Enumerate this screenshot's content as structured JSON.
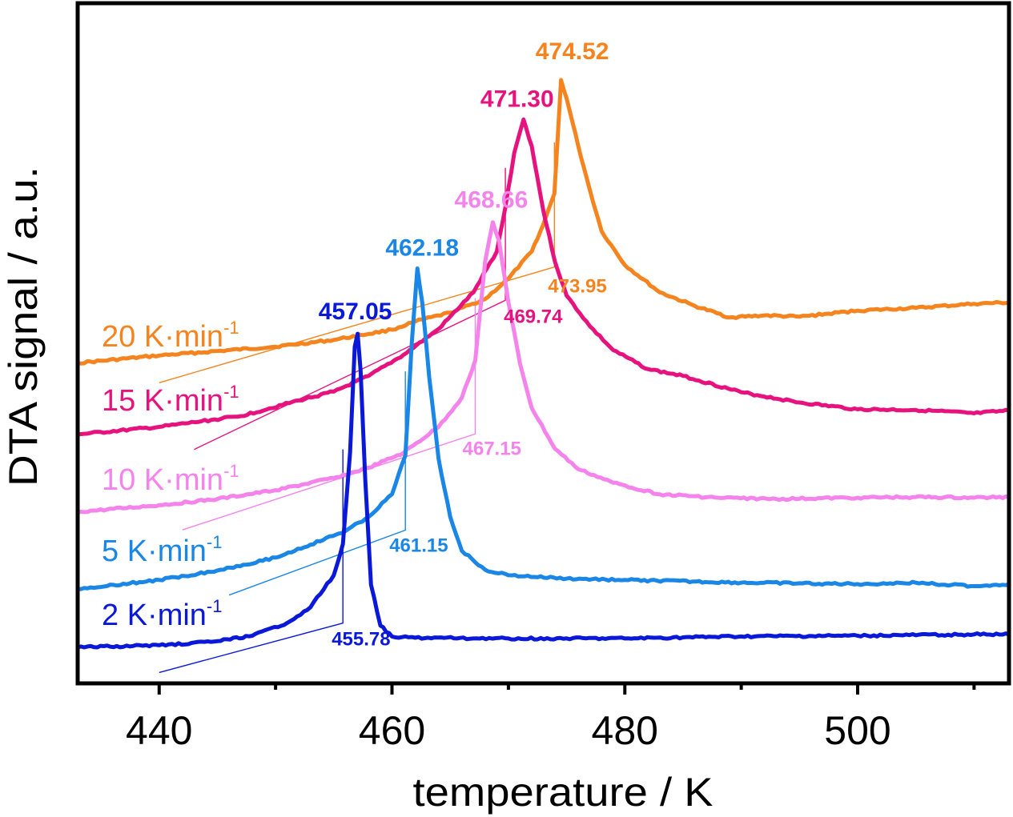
{
  "chart_data": {
    "type": "line",
    "title": "",
    "xlabel": "temperature / K",
    "ylabel": "DTA signal / a.u.",
    "xlim": [
      433,
      513
    ],
    "ylim": [
      0,
      100
    ],
    "x_ticks": [
      440,
      460,
      480,
      500
    ],
    "x_minor_ticks": [
      450,
      470,
      490,
      510
    ],
    "y_ticks": [],
    "grid": false,
    "legend": "none",
    "series": [
      {
        "rate_text": "20 K·min",
        "rate_exp": "-1",
        "color": "#F5841F",
        "peak_label": "474.52",
        "onset_label": "473.95",
        "points": [
          [
            433,
            47.1
          ],
          [
            440,
            48.2
          ],
          [
            450,
            49.5
          ],
          [
            455,
            50.5
          ],
          [
            460,
            52.0
          ],
          [
            462,
            53.2
          ],
          [
            465,
            54.5
          ],
          [
            468,
            56.5
          ],
          [
            470,
            59.5
          ],
          [
            472,
            63.5
          ],
          [
            473,
            67.5
          ],
          [
            473.95,
            72.0
          ],
          [
            474.52,
            88.7
          ],
          [
            475.0,
            86.0
          ],
          [
            476,
            79.0
          ],
          [
            477,
            72.5
          ],
          [
            478,
            66.5
          ],
          [
            480,
            61.5
          ],
          [
            483,
            57.5
          ],
          [
            486,
            55.5
          ],
          [
            489,
            53.8
          ],
          [
            492,
            54.1
          ],
          [
            495,
            53.9
          ],
          [
            500,
            54.8
          ],
          [
            505,
            55.2
          ],
          [
            510,
            55.8
          ],
          [
            513,
            56.0
          ]
        ]
      },
      {
        "rate_text": "15 K·min",
        "rate_exp": "-1",
        "color": "#E6137F",
        "peak_label": "471.30",
        "onset_label": "469.74",
        "points": [
          [
            433,
            36.6
          ],
          [
            440,
            37.7
          ],
          [
            447,
            39.3
          ],
          [
            452,
            41.6
          ],
          [
            455,
            42.9
          ],
          [
            458,
            45.2
          ],
          [
            461,
            48.3
          ],
          [
            464,
            52.1
          ],
          [
            467,
            57.5
          ],
          [
            469,
            63.5
          ],
          [
            469.74,
            70.0
          ],
          [
            470.5,
            78.0
          ],
          [
            471.3,
            82.9
          ],
          [
            472.0,
            79.0
          ],
          [
            473,
            69.5
          ],
          [
            474,
            62.0
          ],
          [
            475,
            57.0
          ],
          [
            477,
            52.5
          ],
          [
            479,
            49.0
          ],
          [
            482,
            46.2
          ],
          [
            485,
            45.2
          ],
          [
            490,
            42.8
          ],
          [
            495,
            41.3
          ],
          [
            500,
            40.3
          ],
          [
            505,
            40.2
          ],
          [
            510,
            39.7
          ],
          [
            513,
            40.1
          ]
        ]
      },
      {
        "rate_text": "10 K·min",
        "rate_exp": "-1",
        "color": "#F484EC",
        "peak_label": "468.66",
        "onset_label": "467.15",
        "points": [
          [
            433,
            25.2
          ],
          [
            440,
            26.2
          ],
          [
            445,
            27.1
          ],
          [
            450,
            28.4
          ],
          [
            455,
            30.2
          ],
          [
            458,
            31.7
          ],
          [
            461,
            33.9
          ],
          [
            464,
            37.7
          ],
          [
            466,
            42.0
          ],
          [
            467.15,
            47.5
          ],
          [
            468.0,
            62.0
          ],
          [
            468.66,
            67.8
          ],
          [
            469.2,
            65.0
          ],
          [
            470,
            56.0
          ],
          [
            471,
            47.0
          ],
          [
            472,
            40.5
          ],
          [
            474,
            34.5
          ],
          [
            476,
            31.5
          ],
          [
            479,
            29.5
          ],
          [
            483,
            27.8
          ],
          [
            488,
            27.3
          ],
          [
            493,
            27.1
          ],
          [
            500,
            27.3
          ],
          [
            505,
            27.4
          ],
          [
            510,
            27.3
          ],
          [
            513,
            27.4
          ]
        ]
      },
      {
        "rate_text": "5 K·min",
        "rate_exp": "-1",
        "color": "#1A86E6",
        "peak_label": "462.18",
        "onset_label": "461.15",
        "points": [
          [
            433,
            13.9
          ],
          [
            440,
            15.2
          ],
          [
            445,
            16.6
          ],
          [
            450,
            18.5
          ],
          [
            453,
            20.4
          ],
          [
            456,
            22.4
          ],
          [
            458,
            24.5
          ],
          [
            460,
            27.8
          ],
          [
            461.15,
            33.5
          ],
          [
            461.7,
            50.0
          ],
          [
            462.18,
            61.0
          ],
          [
            462.6,
            56.0
          ],
          [
            463.2,
            45.0
          ],
          [
            464,
            33.0
          ],
          [
            465,
            24.5
          ],
          [
            466,
            19.5
          ],
          [
            468,
            16.7
          ],
          [
            470,
            15.9
          ],
          [
            475,
            15.4
          ],
          [
            480,
            15.2
          ],
          [
            490,
            14.8
          ],
          [
            500,
            14.6
          ],
          [
            505,
            14.8
          ],
          [
            510,
            14.3
          ],
          [
            513,
            14.6
          ]
        ]
      },
      {
        "rate_text": "2 K·min",
        "rate_exp": "-1",
        "color": "#0A19D7",
        "peak_label": "457.05",
        "onset_label": "455.78",
        "points": [
          [
            433,
            5.3
          ],
          [
            440,
            5.6
          ],
          [
            445,
            6.2
          ],
          [
            448,
            7.0
          ],
          [
            451,
            8.9
          ],
          [
            453,
            11.2
          ],
          [
            455,
            15.9
          ],
          [
            455.78,
            20.5
          ],
          [
            456.4,
            34.0
          ],
          [
            456.8,
            49.5
          ],
          [
            457.05,
            51.4
          ],
          [
            457.3,
            46.0
          ],
          [
            457.7,
            30.0
          ],
          [
            458.2,
            14.5
          ],
          [
            459,
            8.5
          ],
          [
            460,
            6.9
          ],
          [
            462,
            6.7
          ],
          [
            470,
            6.6
          ],
          [
            480,
            6.6
          ],
          [
            490,
            6.9
          ],
          [
            500,
            7.0
          ],
          [
            510,
            7.2
          ],
          [
            513,
            7.2
          ]
        ]
      }
    ]
  }
}
